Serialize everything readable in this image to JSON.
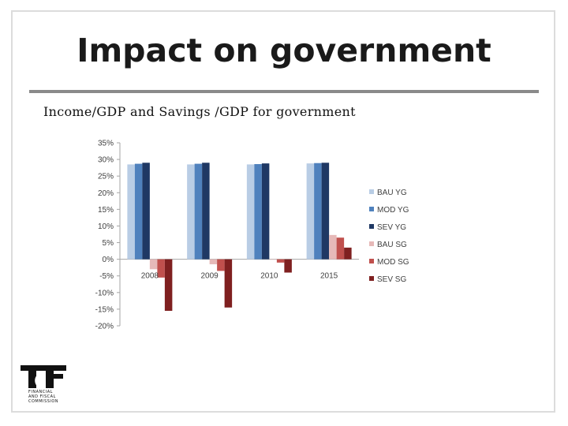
{
  "slide": {
    "title": "Impact on government",
    "subtitle": "Income/GDP and Savings /GDP for government"
  },
  "logo": {
    "name": "tfc-logo",
    "lines": [
      "FINANCIAL",
      "AND FISCAL",
      "COMMISSION"
    ]
  },
  "chart_data": {
    "type": "bar",
    "title": "",
    "xlabel": "",
    "ylabel": "",
    "categories": [
      "2008",
      "2009",
      "2010",
      "2015"
    ],
    "ylim": [
      -0.2,
      0.35
    ],
    "yticks": [
      0.35,
      0.3,
      0.25,
      0.2,
      0.15,
      0.1,
      0.05,
      0.0,
      -0.05,
      -0.1,
      -0.15,
      -0.2
    ],
    "ytick_labels": [
      "35%",
      "30%",
      "25%",
      "20%",
      "15%",
      "10%",
      "5%",
      "0%",
      "-5%",
      "-10%",
      "-15%",
      "-20%"
    ],
    "grid": false,
    "legend_position": "right",
    "series": [
      {
        "name": "BAU YG",
        "color": "#b9cde5",
        "values": [
          0.285,
          0.285,
          0.285,
          0.288
        ]
      },
      {
        "name": "MOD YG",
        "color": "#4f81bd",
        "values": [
          0.287,
          0.287,
          0.286,
          0.289
        ]
      },
      {
        "name": "SEV YG",
        "color": "#1f3864",
        "values": [
          0.29,
          0.29,
          0.288,
          0.29
        ]
      },
      {
        "name": "BAU SG",
        "color": "#e6b9b8",
        "values": [
          -0.03,
          -0.015,
          0.0,
          0.073
        ]
      },
      {
        "name": "MOD SG",
        "color": "#c0504d",
        "values": [
          -0.055,
          -0.035,
          -0.01,
          0.065
        ]
      },
      {
        "name": "SEV SG",
        "color": "#7f2020",
        "values": [
          -0.155,
          -0.145,
          -0.04,
          0.035
        ]
      }
    ]
  }
}
